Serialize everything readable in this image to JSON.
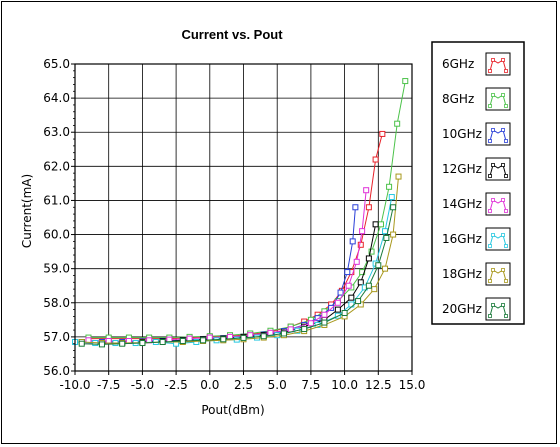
{
  "chart_data": {
    "type": "scatter",
    "title": "Current vs. Pout",
    "xlabel": "Pout(dBm)",
    "ylabel": "Current(mA)",
    "xlim": [
      -10.0,
      15.0
    ],
    "ylim": [
      56.0,
      65.0
    ],
    "xticks": [
      "-10.0",
      "-7.5",
      "-5.0",
      "-2.5",
      "0.0",
      "2.5",
      "5.0",
      "7.5",
      "10.0",
      "12.5",
      "15.0"
    ],
    "yticks": [
      "56.0",
      "57.0",
      "58.0",
      "59.0",
      "60.0",
      "61.0",
      "62.0",
      "63.0",
      "64.0",
      "65.0"
    ],
    "grid": true,
    "legend_position": "right",
    "series": [
      {
        "name": "6GHz",
        "color": "#e8222a",
        "x": [
          -9.0,
          -7.5,
          -6.0,
          -4.5,
          -3.0,
          -1.5,
          0.0,
          1.5,
          3.0,
          4.5,
          6.0,
          7.0,
          8.0,
          9.0,
          9.8,
          10.5,
          11.2,
          11.8,
          12.3,
          12.8
        ],
        "y": [
          56.95,
          56.95,
          56.95,
          56.95,
          56.95,
          56.98,
          57.0,
          57.02,
          57.07,
          57.15,
          57.3,
          57.45,
          57.65,
          57.95,
          58.35,
          58.9,
          59.7,
          60.8,
          62.2,
          62.95
        ]
      },
      {
        "name": "8GHz",
        "color": "#4cc24a",
        "x": [
          -9.0,
          -7.5,
          -6.0,
          -4.5,
          -3.0,
          -1.5,
          0.0,
          1.5,
          3.0,
          4.5,
          6.0,
          7.5,
          8.5,
          9.5,
          10.5,
          11.3,
          12.0,
          12.7,
          13.3,
          13.9,
          14.5
        ],
        "y": [
          56.98,
          56.98,
          56.98,
          56.98,
          56.98,
          57.0,
          57.02,
          57.05,
          57.1,
          57.18,
          57.3,
          57.5,
          57.75,
          58.05,
          58.45,
          58.9,
          59.5,
          60.3,
          61.4,
          63.25,
          64.5
        ]
      },
      {
        "name": "10GHz",
        "color": "#2a3fd8",
        "x": [
          -9.5,
          -8.0,
          -6.5,
          -5.0,
          -3.5,
          -2.0,
          -0.5,
          1.0,
          2.5,
          4.0,
          5.5,
          7.0,
          8.0,
          9.0,
          9.7,
          10.2,
          10.6,
          10.8
        ],
        "y": [
          56.85,
          56.85,
          56.85,
          56.87,
          56.88,
          56.9,
          56.93,
          56.96,
          57.0,
          57.07,
          57.17,
          57.35,
          57.55,
          57.85,
          58.3,
          58.9,
          59.8,
          60.8
        ]
      },
      {
        "name": "12GHz",
        "color": "#000000",
        "x": [
          -9.5,
          -8.0,
          -6.5,
          -5.0,
          -3.5,
          -2.0,
          -0.5,
          1.0,
          2.5,
          4.0,
          5.5,
          7.0,
          8.5,
          9.5,
          10.5,
          11.2,
          11.8,
          12.3
        ],
        "y": [
          56.85,
          56.8,
          56.82,
          56.85,
          56.87,
          56.9,
          56.93,
          56.95,
          57.0,
          57.05,
          57.13,
          57.3,
          57.5,
          57.8,
          58.15,
          58.6,
          59.3,
          60.3
        ]
      },
      {
        "name": "14GHz",
        "color": "#e030d8",
        "x": [
          -9.0,
          -7.5,
          -6.0,
          -4.5,
          -3.0,
          -1.5,
          0.0,
          1.5,
          3.0,
          4.5,
          6.0,
          7.5,
          8.5,
          9.5,
          10.3,
          10.9,
          11.3,
          11.6
        ],
        "y": [
          56.9,
          56.88,
          56.88,
          56.9,
          56.92,
          56.95,
          56.98,
          57.0,
          57.05,
          57.12,
          57.22,
          57.4,
          57.65,
          58.0,
          58.5,
          59.2,
          60.1,
          61.3
        ]
      },
      {
        "name": "16GHz",
        "color": "#27c8e0",
        "x": [
          -10.0,
          -8.5,
          -7.0,
          -5.5,
          -4.0,
          -2.5,
          -1.0,
          0.5,
          2.0,
          3.5,
          5.0,
          6.5,
          8.0,
          9.5,
          10.5,
          11.5,
          12.3,
          13.0,
          13.5
        ],
        "y": [
          56.85,
          56.82,
          56.82,
          56.82,
          56.85,
          56.8,
          56.85,
          56.9,
          56.92,
          56.98,
          57.05,
          57.18,
          57.35,
          57.62,
          57.95,
          58.45,
          59.15,
          60.1,
          61.1
        ]
      },
      {
        "name": "18GHz",
        "color": "#a8981c",
        "x": [
          -9.5,
          -8.0,
          -6.5,
          -5.0,
          -3.5,
          -2.0,
          -0.5,
          1.0,
          2.5,
          4.0,
          5.5,
          7.0,
          8.5,
          10.0,
          11.2,
          12.2,
          13.0,
          13.6,
          14.0
        ],
        "y": [
          56.85,
          56.82,
          56.82,
          56.83,
          56.85,
          56.85,
          56.88,
          56.9,
          56.93,
          56.98,
          57.05,
          57.17,
          57.35,
          57.6,
          57.95,
          58.4,
          59.0,
          60.0,
          61.7
        ]
      },
      {
        "name": "20GHz",
        "color": "#1a7a3a",
        "x": [
          -9.5,
          -8.0,
          -6.5,
          -5.0,
          -3.5,
          -2.0,
          -0.5,
          1.0,
          2.5,
          4.0,
          5.5,
          7.0,
          8.5,
          10.0,
          11.0,
          11.8,
          12.5,
          13.1,
          13.6
        ],
        "y": [
          56.8,
          56.78,
          56.8,
          56.82,
          56.85,
          56.88,
          56.9,
          56.93,
          56.97,
          57.02,
          57.1,
          57.23,
          57.42,
          57.7,
          58.05,
          58.5,
          59.1,
          59.9,
          60.8
        ]
      }
    ]
  }
}
